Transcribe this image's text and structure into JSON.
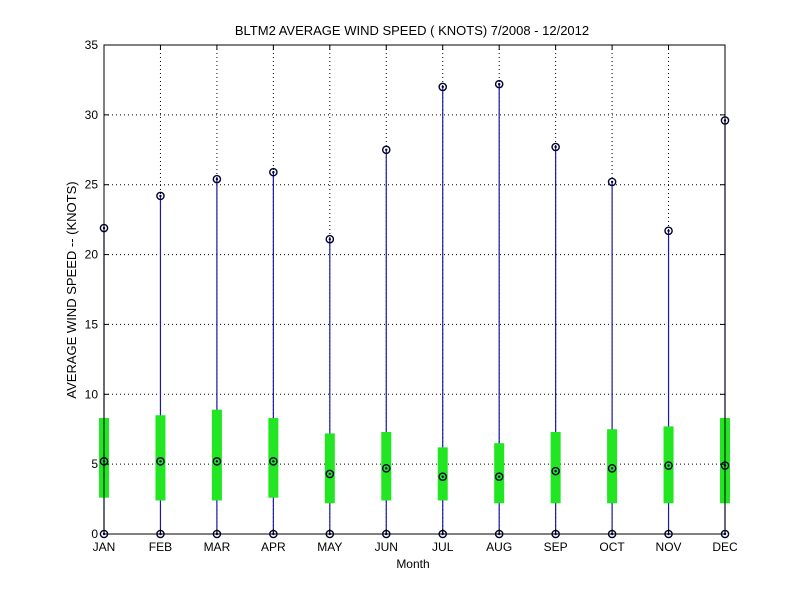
{
  "chart_data": {
    "type": "box",
    "title": "BLTM2  AVERAGE WIND SPEED ( KNOTS) 7/2008 - 12/2012",
    "xlabel": "Month",
    "ylabel": "AVERAGE WIND SPEED -- (KNOTS)",
    "ylim": [
      0,
      35
    ],
    "yticks": [
      0,
      5,
      10,
      15,
      20,
      25,
      30,
      35
    ],
    "grid": true,
    "categories": [
      "JAN",
      "FEB",
      "MAR",
      "APR",
      "MAY",
      "JUN",
      "JUL",
      "AUG",
      "SEP",
      "OCT",
      "NOV",
      "DEC"
    ],
    "min": [
      0,
      0,
      0,
      0,
      0,
      0,
      0,
      0,
      0,
      0,
      0,
      0
    ],
    "max": [
      21.9,
      24.2,
      25.4,
      25.9,
      21.1,
      27.5,
      32.0,
      32.2,
      27.7,
      25.2,
      21.7,
      29.6
    ],
    "q1": [
      2.6,
      2.4,
      2.4,
      2.6,
      2.2,
      2.4,
      2.4,
      2.2,
      2.2,
      2.2,
      2.2,
      2.2
    ],
    "q3": [
      8.3,
      8.5,
      8.9,
      8.3,
      7.2,
      7.3,
      6.2,
      6.5,
      7.3,
      7.5,
      7.7,
      8.3
    ],
    "median": [
      5.2,
      5.2,
      5.2,
      5.2,
      4.3,
      4.7,
      4.1,
      4.1,
      4.5,
      4.7,
      4.9,
      4.9
    ],
    "colors": {
      "whisker": "#1a1aa6",
      "box": "#22e622",
      "marker": "#000033",
      "grid": "#000000"
    }
  }
}
